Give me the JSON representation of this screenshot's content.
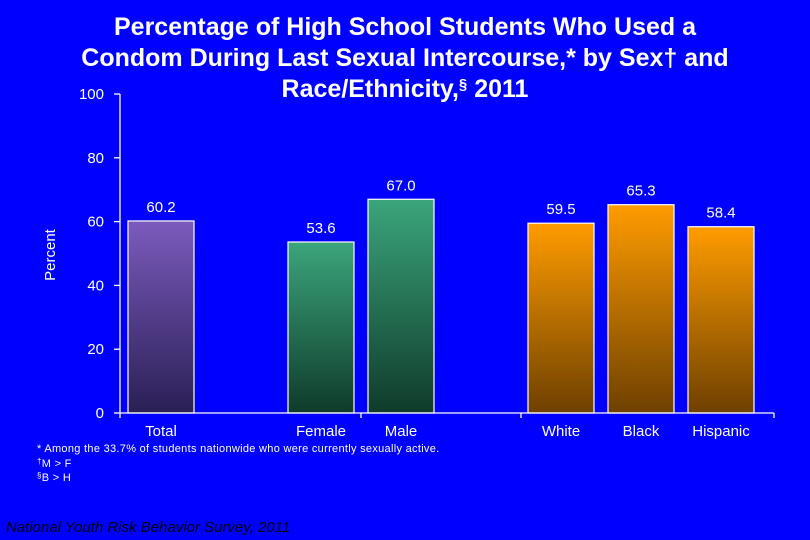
{
  "title": {
    "line1": "Percentage of High School Students Who Used a",
    "line2_main": "Condom During Last Sexual Intercourse,* by Sex",
    "line2_mark": "†",
    "line2_end": " and",
    "line3_main": "Race/Ethnicity,",
    "line3_mark": "§",
    "line3_end": " 2011"
  },
  "footnotes": [
    {
      "mark": "",
      "text": "* Among the 33.7% of students nationwide who were currently sexually active."
    },
    {
      "mark": "†",
      "text": "M > F"
    },
    {
      "mark": "§",
      "text": "B > H"
    }
  ],
  "source": "National Youth Risk Behavior Survey, 2011",
  "chart_data": {
    "type": "bar",
    "title": "Percentage of High School Students Who Used a Condom During Last Sexual Intercourse,* by Sex† and Race/Ethnicity,§ 2011",
    "xlabel": "",
    "ylabel": "Percent",
    "ylim": [
      0,
      100
    ],
    "yticks": [
      "0",
      "20",
      "40",
      "60",
      "80",
      "100"
    ],
    "grid": false,
    "categories": [
      "Total",
      "Female",
      "Male",
      "White",
      "Black",
      "Hispanic"
    ],
    "values": [
      60.2,
      53.6,
      67.0,
      59.5,
      65.3,
      58.4
    ],
    "labels": [
      "60.2",
      "53.6",
      "67.0",
      "59.5",
      "65.3",
      "58.4"
    ],
    "groups": [
      "Total",
      "Sex",
      "Sex",
      "Race/Ethnicity",
      "Race/Ethnicity",
      "Race/Ethnicity"
    ],
    "colors": {
      "Total": [
        "#7b5bbd",
        "#2a1f55"
      ],
      "Female": [
        "#3ba57b",
        "#0f3b2b"
      ],
      "Male": [
        "#3ba57b",
        "#0f3b2b"
      ],
      "White": [
        "#ff9c00",
        "#6e4000"
      ],
      "Black": [
        "#ff9c00",
        "#6e4000"
      ],
      "Hispanic": [
        "#ff9c00",
        "#6e4000"
      ]
    }
  }
}
